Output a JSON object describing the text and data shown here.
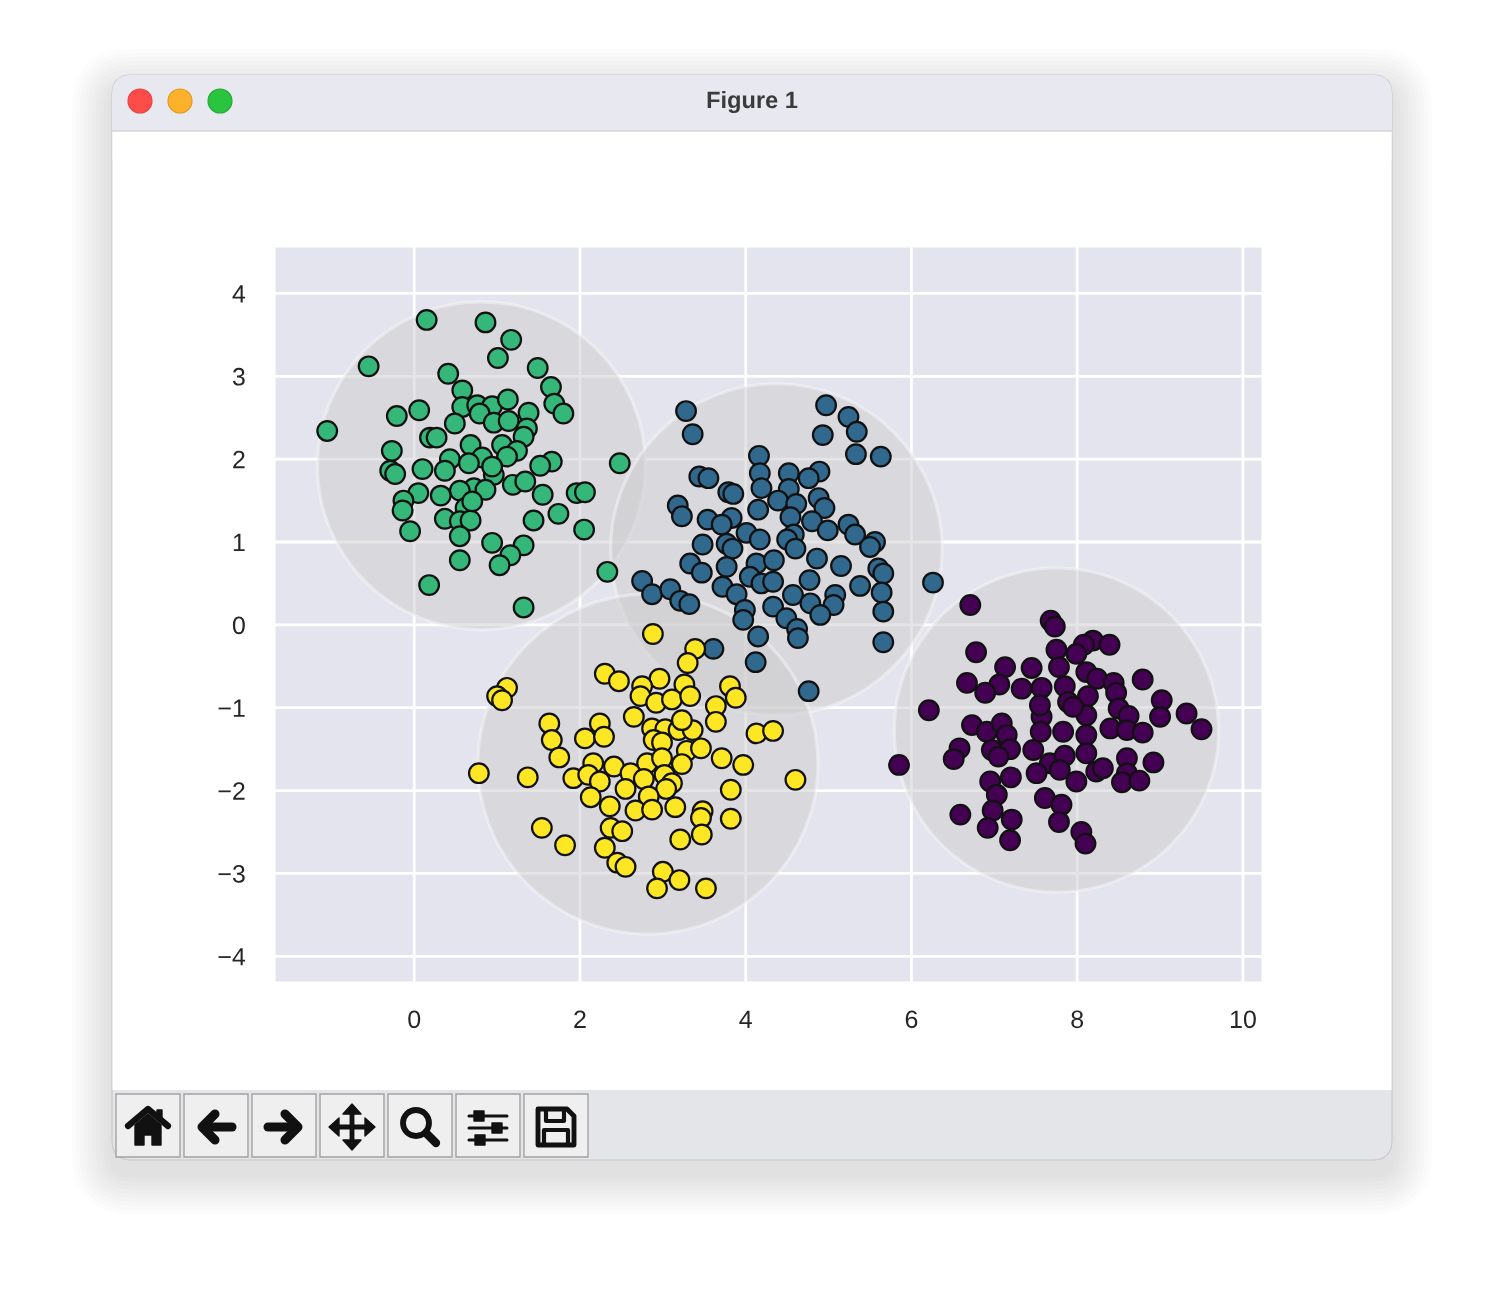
{
  "chart_data": {
    "type": "scatter",
    "title": "Figure 1",
    "marker": "circle",
    "grid": true,
    "xlim": [
      -1.68,
      10.23
    ],
    "ylim": [
      -4.31,
      4.56
    ],
    "xticks": [
      0,
      2,
      4,
      6,
      8,
      10
    ],
    "yticks": [
      {
        "value": -4,
        "label": "−4"
      },
      {
        "value": -3,
        "label": "−3"
      },
      {
        "value": -2,
        "label": "−2"
      },
      {
        "value": -1,
        "label": "−1"
      },
      0,
      1,
      2,
      3,
      4
    ],
    "series": [
      {
        "type": "bubble",
        "color": "#cccccc",
        "x": [
          0.81,
          4.37,
          2.82,
          7.75
        ],
        "values": [
          1.92,
          0.91,
          -1.68,
          -1.27
        ],
        "sizes": [
          0.93,
          0.95,
          1,
          0.91
        ]
      },
      {
        "color": "#440154",
        "x": [
          6.71,
          7.68,
          7.73,
          8.19,
          8.08,
          8.39,
          7.75,
          7.99,
          6.78,
          7.13,
          7.45,
          7.78,
          8.11,
          8.24,
          8.44,
          8.79,
          6.67,
          7.06,
          6.89,
          7.33,
          7.57,
          7.85,
          8.47,
          7.89,
          8.13,
          9.02,
          6.21,
          7.57,
          8.11,
          8.5,
          8.62,
          9.0,
          9.32,
          9.5,
          6.73,
          6.91,
          7.09,
          7.15,
          7.56,
          7.83,
          8.11,
          8.4,
          8.6,
          8.79,
          6.58,
          6.51,
          6.97,
          7.19,
          7.47,
          7.67,
          7.85,
          8.11,
          7.05,
          8.6,
          8.92,
          5.85,
          7.51,
          7.79,
          8.23,
          8.31,
          8.6,
          8.54,
          8.75,
          7.99,
          7.2,
          6.95,
          7.03,
          7.61,
          7.81,
          6.98,
          7.21,
          6.59,
          6.92,
          7.78,
          7.19,
          8.05,
          8.1,
          7.95,
          7.55
        ],
        "values": [
          0.24,
          0.05,
          -0.02,
          -0.19,
          -0.24,
          -0.24,
          -0.3,
          -0.35,
          -0.33,
          -0.51,
          -0.52,
          -0.51,
          -0.57,
          -0.65,
          -0.7,
          -0.66,
          -0.7,
          -0.72,
          -0.82,
          -0.77,
          -0.76,
          -0.74,
          -0.82,
          -0.93,
          -0.86,
          -0.91,
          -1.03,
          -1.11,
          -1.09,
          -1.01,
          -1.1,
          -1.11,
          -1.07,
          -1.26,
          -1.21,
          -1.29,
          -1.19,
          -1.33,
          -1.29,
          -1.29,
          -1.33,
          -1.25,
          -1.27,
          -1.3,
          -1.49,
          -1.62,
          -1.51,
          -1.5,
          -1.51,
          -1.67,
          -1.58,
          -1.55,
          -1.59,
          -1.61,
          -1.66,
          -1.69,
          -1.79,
          -1.75,
          -1.77,
          -1.73,
          -1.79,
          -1.9,
          -1.88,
          -1.89,
          -1.84,
          -1.89,
          -2.05,
          -2.09,
          -2.17,
          -2.24,
          -2.35,
          -2.29,
          -2.45,
          -2.38,
          -2.6,
          -2.5,
          -2.64,
          -0.99,
          -0.97
        ]
      },
      {
        "color": "#31688e",
        "x": [
          4.97,
          5.24,
          5.34,
          4.93,
          3.28,
          3.36,
          5.33,
          5.63,
          4.89,
          4.16,
          4.17,
          3.44,
          3.55,
          4.52,
          4.76,
          3.79,
          3.85,
          4.19,
          4.52,
          4.39,
          4.61,
          4.88,
          4.95,
          3.18,
          3.23,
          4.15,
          3.54,
          3.83,
          3.71,
          4.54,
          4.8,
          5.24,
          5.32,
          4.01,
          4.17,
          4.58,
          4.99,
          5.56,
          5.5,
          3.48,
          3.77,
          3.84,
          4.5,
          4.6,
          3.33,
          3.47,
          3.77,
          4.13,
          4.34,
          4.86,
          5.15,
          5.6,
          5.66,
          4.05,
          4.19,
          4.33,
          4.77,
          3.72,
          2.75,
          2.87,
          3.09,
          3.21,
          3.32,
          3.89,
          4.57,
          5.38,
          5.64,
          5.08,
          4.78,
          5.06,
          4.33,
          3.99,
          4.9,
          3.97,
          4.49,
          5.66,
          4.62,
          4.63,
          4.15,
          5.66,
          6.26,
          3.61,
          4.12,
          4.76
        ],
        "values": [
          2.65,
          2.51,
          2.33,
          2.29,
          2.58,
          2.3,
          2.06,
          2.03,
          1.85,
          2.04,
          1.83,
          1.79,
          1.77,
          1.83,
          1.77,
          1.6,
          1.58,
          1.65,
          1.64,
          1.5,
          1.46,
          1.53,
          1.41,
          1.44,
          1.31,
          1.39,
          1.27,
          1.29,
          1.21,
          1.3,
          1.25,
          1.21,
          1.09,
          1.11,
          1.03,
          1.09,
          1.14,
          1.0,
          0.94,
          0.97,
          0.98,
          0.92,
          1.03,
          0.92,
          0.74,
          0.63,
          0.7,
          0.74,
          0.78,
          0.8,
          0.71,
          0.68,
          0.62,
          0.58,
          0.5,
          0.52,
          0.54,
          0.46,
          0.53,
          0.37,
          0.43,
          0.29,
          0.25,
          0.37,
          0.36,
          0.47,
          0.39,
          0.36,
          0.26,
          0.24,
          0.22,
          0.18,
          0.12,
          0.06,
          0.08,
          0.16,
          -0.05,
          -0.16,
          -0.14,
          -0.21,
          0.51,
          -0.29,
          -0.45,
          -0.8
        ]
      },
      {
        "color": "#35b779",
        "x": [
          0.15,
          0.86,
          1.17,
          1.01,
          -0.55,
          1.49,
          0.41,
          1.65,
          0.58,
          1.69,
          1.8,
          -1.05,
          -0.21,
          0.06,
          0.58,
          0.76,
          0.94,
          1.13,
          1.38,
          0.79,
          0.49,
          0.96,
          1.14,
          1.36,
          1.32,
          0.19,
          0.27,
          0.68,
          1.06,
          1.24,
          -0.27,
          0.82,
          0.43,
          0.66,
          1.12,
          1.66,
          1.52,
          2.48,
          -0.29,
          -0.23,
          0.1,
          0.37,
          0.96,
          1.19,
          1.34,
          0.72,
          0.55,
          0.86,
          0.05,
          0.32,
          -0.13,
          -0.14,
          1.55,
          1.96,
          2.06,
          0.62,
          0.37,
          0.55,
          0.68,
          1.44,
          1.74,
          -0.05,
          0.55,
          2.05,
          0.94,
          1.32,
          1.16,
          1.03,
          0.55,
          2.33,
          0.18,
          1.32,
          0.94,
          0.7
        ],
        "values": [
          3.68,
          3.65,
          3.44,
          3.22,
          3.12,
          3.1,
          3.03,
          2.87,
          2.83,
          2.67,
          2.55,
          2.34,
          2.52,
          2.59,
          2.63,
          2.65,
          2.64,
          2.72,
          2.56,
          2.55,
          2.43,
          2.44,
          2.46,
          2.37,
          2.27,
          2.26,
          2.26,
          2.17,
          2.17,
          2.1,
          2.1,
          2.02,
          2.0,
          1.95,
          2.03,
          1.97,
          1.92,
          1.95,
          1.86,
          1.82,
          1.88,
          1.86,
          1.81,
          1.69,
          1.73,
          1.65,
          1.62,
          1.63,
          1.59,
          1.56,
          1.5,
          1.38,
          1.57,
          1.59,
          1.6,
          1.41,
          1.28,
          1.25,
          1.26,
          1.26,
          1.34,
          1.13,
          1.07,
          1.15,
          0.99,
          0.96,
          0.84,
          0.72,
          0.78,
          0.64,
          0.48,
          0.21,
          1.91,
          1.49
        ]
      },
      {
        "color": "#fde725",
        "x": [
          2.88,
          3.39,
          3.3,
          2.3,
          2.47,
          2.96,
          3.26,
          2.75,
          2.73,
          2.92,
          3.11,
          3.33,
          3.81,
          3.88,
          3.64,
          3.64,
          1.12,
          1.0,
          1.06,
          2.65,
          1.63,
          2.24,
          1.66,
          2.06,
          2.29,
          2.87,
          3.03,
          3.19,
          3.36,
          3.23,
          2.89,
          2.99,
          4.13,
          4.33,
          1.75,
          2.16,
          2.41,
          2.81,
          2.99,
          3.29,
          3.46,
          3.23,
          3.71,
          3.97,
          0.78,
          1.37,
          1.92,
          2.1,
          2.24,
          2.61,
          2.77,
          3.02,
          3.11,
          4.6,
          2.55,
          3.04,
          2.13,
          2.83,
          3.82,
          2.36,
          2.67,
          2.87,
          3.15,
          3.48,
          3.46,
          3.82,
          1.54,
          2.37,
          2.51,
          3.47,
          3.21,
          1.82,
          2.3,
          2.45,
          2.55,
          3.0,
          3.2,
          2.93,
          3.52
        ],
        "values": [
          -0.11,
          -0.29,
          -0.46,
          -0.59,
          -0.68,
          -0.65,
          -0.72,
          -0.74,
          -0.86,
          -0.94,
          -0.9,
          -0.86,
          -0.74,
          -0.88,
          -0.98,
          -1.17,
          -0.76,
          -0.86,
          -0.91,
          -1.11,
          -1.19,
          -1.19,
          -1.39,
          -1.37,
          -1.35,
          -1.25,
          -1.26,
          -1.27,
          -1.27,
          -1.15,
          -1.39,
          -1.42,
          -1.31,
          -1.28,
          -1.6,
          -1.67,
          -1.71,
          -1.67,
          -1.61,
          -1.52,
          -1.49,
          -1.68,
          -1.61,
          -1.69,
          -1.79,
          -1.84,
          -1.85,
          -1.81,
          -1.89,
          -1.79,
          -1.86,
          -1.81,
          -1.91,
          -1.87,
          -1.98,
          -1.98,
          -2.08,
          -2.07,
          -1.99,
          -2.19,
          -2.24,
          -2.23,
          -2.2,
          -2.25,
          -2.33,
          -2.34,
          -2.45,
          -2.45,
          -2.49,
          -2.53,
          -2.59,
          -2.66,
          -2.69,
          -2.87,
          -2.92,
          -2.98,
          -3.08,
          -3.18,
          -3.18
        ]
      }
    ]
  }
}
